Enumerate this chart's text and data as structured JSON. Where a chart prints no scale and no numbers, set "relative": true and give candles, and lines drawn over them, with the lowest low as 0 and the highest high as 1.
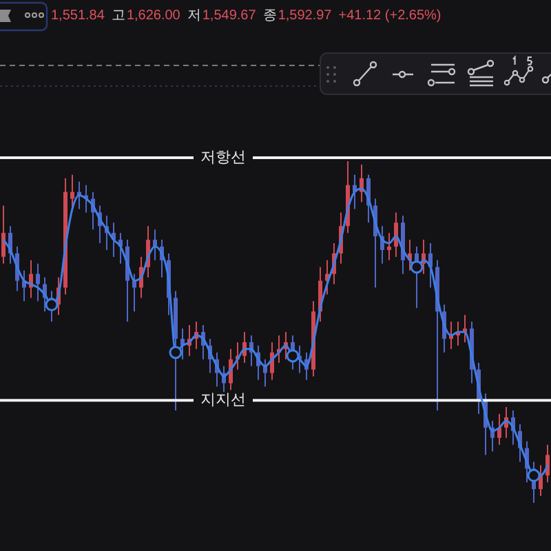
{
  "chart_data": {
    "type": "candlestick",
    "relative": true,
    "categories": [
      null,
      null,
      null,
      null,
      null,
      null,
      null,
      null,
      null,
      null,
      null,
      null,
      null,
      null,
      null,
      null,
      null,
      null,
      null,
      null,
      null,
      null,
      null,
      null,
      null,
      null,
      null,
      null,
      null,
      null,
      null,
      null,
      null,
      null,
      null,
      null,
      null,
      null,
      null,
      null,
      null,
      null,
      null,
      null,
      null,
      null,
      null,
      null,
      null,
      null,
      null,
      null,
      null,
      null,
      null,
      null,
      null,
      null,
      null,
      null,
      null,
      null,
      null,
      null,
      null,
      null,
      null,
      null,
      null,
      null,
      null,
      null,
      null,
      null,
      null,
      null,
      null,
      null,
      null,
      null
    ],
    "ohlc": [
      [
        0.72,
        0.87,
        0.7,
        0.79
      ],
      [
        0.79,
        0.81,
        0.7,
        0.73
      ],
      [
        0.73,
        0.75,
        0.62,
        0.65
      ],
      [
        0.65,
        0.68,
        0.59,
        0.63
      ],
      [
        0.63,
        0.71,
        0.6,
        0.67
      ],
      [
        0.67,
        0.7,
        0.59,
        0.64
      ],
      [
        0.64,
        0.66,
        0.56,
        0.6
      ],
      [
        0.6,
        0.62,
        0.53,
        0.58
      ],
      [
        0.58,
        0.66,
        0.55,
        0.63
      ],
      [
        0.63,
        0.95,
        0.61,
        0.91
      ],
      [
        0.89,
        0.96,
        0.86,
        0.91
      ],
      [
        0.91,
        0.94,
        0.86,
        0.9
      ],
      [
        0.9,
        0.93,
        0.85,
        0.89
      ],
      [
        0.89,
        0.91,
        0.8,
        0.85
      ],
      [
        0.85,
        0.87,
        0.76,
        0.81
      ],
      [
        0.81,
        0.84,
        0.74,
        0.79
      ],
      [
        0.79,
        0.82,
        0.72,
        0.77
      ],
      [
        0.77,
        0.79,
        0.7,
        0.75
      ],
      [
        0.75,
        0.77,
        0.53,
        0.65
      ],
      [
        0.65,
        0.67,
        0.56,
        0.63
      ],
      [
        0.63,
        0.72,
        0.6,
        0.69
      ],
      [
        0.69,
        0.81,
        0.66,
        0.77
      ],
      [
        0.77,
        0.8,
        0.71,
        0.75
      ],
      [
        0.75,
        0.77,
        0.66,
        0.71
      ],
      [
        0.71,
        0.73,
        0.55,
        0.6
      ],
      [
        0.6,
        0.62,
        0.27,
        0.48
      ],
      [
        0.48,
        0.51,
        0.42,
        0.46
      ],
      [
        0.46,
        0.52,
        0.43,
        0.48
      ],
      [
        0.48,
        0.53,
        0.45,
        0.5
      ],
      [
        0.5,
        0.52,
        0.42,
        0.46
      ],
      [
        0.46,
        0.48,
        0.38,
        0.42
      ],
      [
        0.42,
        0.44,
        0.34,
        0.38
      ],
      [
        0.38,
        0.4,
        0.32,
        0.35
      ],
      [
        0.35,
        0.45,
        0.33,
        0.42
      ],
      [
        0.42,
        0.47,
        0.39,
        0.43
      ],
      [
        0.43,
        0.5,
        0.41,
        0.47
      ],
      [
        0.47,
        0.49,
        0.4,
        0.44
      ],
      [
        0.44,
        0.46,
        0.36,
        0.4
      ],
      [
        0.4,
        0.42,
        0.34,
        0.38
      ],
      [
        0.38,
        0.47,
        0.36,
        0.44
      ],
      [
        0.44,
        0.49,
        0.41,
        0.45
      ],
      [
        0.45,
        0.5,
        0.42,
        0.47
      ],
      [
        0.47,
        0.49,
        0.39,
        0.43
      ],
      [
        0.43,
        0.46,
        0.38,
        0.42
      ],
      [
        0.42,
        0.44,
        0.36,
        0.39
      ],
      [
        0.39,
        0.59,
        0.37,
        0.56
      ],
      [
        0.56,
        0.69,
        0.53,
        0.65
      ],
      [
        0.65,
        0.71,
        0.61,
        0.67
      ],
      [
        0.67,
        0.76,
        0.64,
        0.73
      ],
      [
        0.73,
        0.85,
        0.7,
        0.81
      ],
      [
        0.81,
        1.0,
        0.79,
        0.93
      ],
      [
        0.93,
        0.96,
        0.86,
        0.91
      ],
      [
        0.91,
        0.99,
        0.88,
        0.95
      ],
      [
        0.95,
        0.96,
        0.82,
        0.87
      ],
      [
        0.87,
        0.89,
        0.63,
        0.78
      ],
      [
        0.78,
        0.81,
        0.7,
        0.74
      ],
      [
        0.74,
        0.79,
        0.71,
        0.75
      ],
      [
        0.75,
        0.85,
        0.72,
        0.82
      ],
      [
        0.82,
        0.84,
        0.67,
        0.71
      ],
      [
        0.71,
        0.77,
        0.68,
        0.73
      ],
      [
        0.73,
        0.75,
        0.57,
        0.7
      ],
      [
        0.7,
        0.77,
        0.67,
        0.73
      ],
      [
        0.73,
        0.76,
        0.63,
        0.69
      ],
      [
        0.69,
        0.71,
        0.27,
        0.56
      ],
      [
        0.56,
        0.58,
        0.44,
        0.48
      ],
      [
        0.48,
        0.53,
        0.45,
        0.49
      ],
      [
        0.49,
        0.53,
        0.46,
        0.5
      ],
      [
        0.5,
        0.55,
        0.47,
        0.51
      ],
      [
        0.51,
        0.53,
        0.35,
        0.39
      ],
      [
        0.39,
        0.41,
        0.26,
        0.3
      ],
      [
        0.3,
        0.32,
        0.14,
        0.22
      ],
      [
        0.22,
        0.24,
        0.15,
        0.19
      ],
      [
        0.19,
        0.26,
        0.17,
        0.22
      ],
      [
        0.22,
        0.28,
        0.19,
        0.25
      ],
      [
        0.25,
        0.27,
        0.17,
        0.21
      ],
      [
        0.21,
        0.23,
        0.12,
        0.16
      ],
      [
        0.16,
        0.18,
        0.06,
        0.1
      ],
      [
        0.1,
        0.12,
        0.0,
        0.04
      ],
      [
        0.04,
        0.11,
        0.02,
        0.08
      ],
      [
        0.08,
        0.17,
        0.06,
        0.14
      ]
    ],
    "colors": [
      "#d04a55",
      "#5068c8",
      "#5068c8",
      "#5068c8",
      "#d04a55",
      "#5068c8",
      "#5068c8",
      "#5068c8",
      "#d04a55",
      "#d04a55",
      "#d04a55",
      "#5068c8",
      "#5068c8",
      "#5068c8",
      "#5068c8",
      "#5068c8",
      "#5068c8",
      "#5068c8",
      "#5068c8",
      "#5068c8",
      "#d04a55",
      "#d04a55",
      "#5068c8",
      "#5068c8",
      "#5068c8",
      "#5068c8",
      "#5068c8",
      "#d04a55",
      "#d04a55",
      "#5068c8",
      "#5068c8",
      "#5068c8",
      "#5068c8",
      "#d04a55",
      "#d04a55",
      "#d04a55",
      "#5068c8",
      "#5068c8",
      "#5068c8",
      "#d04a55",
      "#d04a55",
      "#d04a55",
      "#5068c8",
      "#5068c8",
      "#5068c8",
      "#d04a55",
      "#d04a55",
      "#d04a55",
      "#d04a55",
      "#d04a55",
      "#d04a55",
      "#5068c8",
      "#d04a55",
      "#5068c8",
      "#5068c8",
      "#5068c8",
      "#d04a55",
      "#d04a55",
      "#5068c8",
      "#d04a55",
      "#5068c8",
      "#d04a55",
      "#5068c8",
      "#5068c8",
      "#5068c8",
      "#d04a55",
      "#d04a55",
      "#d04a55",
      "#5068c8",
      "#5068c8",
      "#5068c8",
      "#5068c8",
      "#d04a55",
      "#d04a55",
      "#5068c8",
      "#5068c8",
      "#5068c8",
      "#5068c8",
      "#d04a55",
      "#d04a55"
    ],
    "series": [
      {
        "type": "line",
        "color": "#3f7fe8",
        "values": [
          0.77,
          0.74,
          0.69,
          0.65,
          0.64,
          0.63,
          0.61,
          0.58,
          0.61,
          0.75,
          0.86,
          0.9,
          0.89,
          0.87,
          0.83,
          0.8,
          0.77,
          0.75,
          0.7,
          0.65,
          0.66,
          0.72,
          0.75,
          0.73,
          0.65,
          0.44,
          0.46,
          0.47,
          0.49,
          0.48,
          0.44,
          0.4,
          0.37,
          0.39,
          0.42,
          0.45,
          0.45,
          0.42,
          0.4,
          0.42,
          0.44,
          0.46,
          0.43,
          0.42,
          0.4,
          0.47,
          0.57,
          0.64,
          0.7,
          0.77,
          0.86,
          0.91,
          0.92,
          0.89,
          0.82,
          0.77,
          0.76,
          0.78,
          0.74,
          0.71,
          0.69,
          0.71,
          0.69,
          0.6,
          0.52,
          0.49,
          0.5,
          0.5,
          0.43,
          0.34,
          0.26,
          0.21,
          0.22,
          0.24,
          0.22,
          0.17,
          0.12,
          0.08,
          0.08,
          0.11
        ]
      },
      {
        "type": "scatter",
        "color": "#3f7fe8",
        "marker": "circle",
        "values": [
          null,
          null,
          null,
          null,
          null,
          null,
          null,
          0.58,
          null,
          null,
          null,
          null,
          null,
          null,
          null,
          null,
          null,
          null,
          null,
          null,
          null,
          null,
          null,
          null,
          null,
          0.44,
          null,
          null,
          null,
          null,
          null,
          null,
          null,
          null,
          null,
          null,
          null,
          null,
          null,
          null,
          null,
          null,
          0.43,
          null,
          null,
          null,
          null,
          null,
          null,
          null,
          null,
          null,
          null,
          null,
          null,
          null,
          null,
          null,
          null,
          null,
          0.69,
          null,
          null,
          null,
          null,
          null,
          null,
          null,
          null,
          null,
          null,
          null,
          null,
          null,
          null,
          null,
          null,
          0.08,
          null,
          null
        ]
      }
    ],
    "ref_lines": [
      {
        "axis": "y",
        "value": 1.01,
        "label": "저항선",
        "color": "#f0f0f0"
      },
      {
        "axis": "y",
        "value": 0.3,
        "label": "지지선",
        "color": "#f0f0f0"
      },
      {
        "axis": "y",
        "value": 1.28,
        "color": "#7a7a7a",
        "line_style": "dashed"
      },
      {
        "axis": "y",
        "value": 1.22,
        "color": "#2e3550",
        "line_style": "dotted"
      }
    ],
    "annotations": [
      "1,551.84",
      "고",
      "1,626.00",
      "저",
      "1,549.67",
      "종",
      "1,592.97",
      "+41.12 (+2.65%)"
    ]
  }
}
